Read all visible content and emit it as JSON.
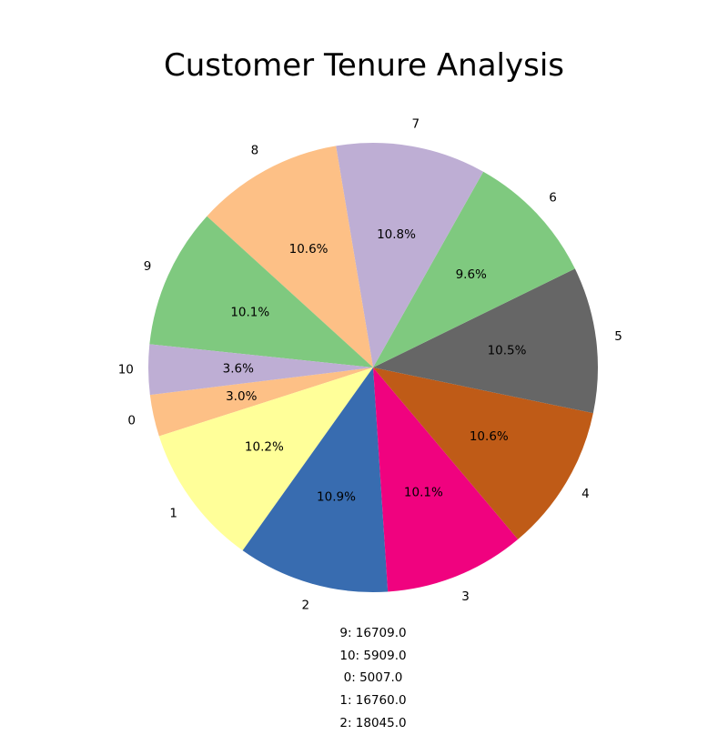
{
  "chart_data": {
    "type": "pie",
    "title": "Customer Tenure Analysis",
    "start_angle_deg": 187,
    "direction": "counterclockwise",
    "slices": [
      {
        "label": "0",
        "percent": 3.0,
        "autopct": "3.0%",
        "color": "#fdc086"
      },
      {
        "label": "1",
        "percent": 10.2,
        "autopct": "10.2%",
        "color": "#ffff99"
      },
      {
        "label": "2",
        "percent": 10.9,
        "autopct": "10.9%",
        "color": "#386cb0"
      },
      {
        "label": "3",
        "percent": 10.1,
        "autopct": "10.1%",
        "color": "#f0027f"
      },
      {
        "label": "4",
        "percent": 10.6,
        "autopct": "10.6%",
        "color": "#bf5b17"
      },
      {
        "label": "5",
        "percent": 10.5,
        "autopct": "10.5%",
        "color": "#666666"
      },
      {
        "label": "6",
        "percent": 9.6,
        "autopct": "9.6%",
        "color": "#7fc97f"
      },
      {
        "label": "7",
        "percent": 10.8,
        "autopct": "10.8%",
        "color": "#beaed4"
      },
      {
        "label": "8",
        "percent": 10.6,
        "autopct": "10.6%",
        "color": "#fdc086"
      },
      {
        "label": "9",
        "percent": 10.1,
        "autopct": "10.1%",
        "color": "#7fc97f"
      },
      {
        "label": "10",
        "percent": 3.6,
        "autopct": "3.6%",
        "color": "#beaed4"
      }
    ],
    "annotations": [
      "9: 16709.0",
      "10: 5909.0",
      "0: 5007.0",
      "1: 16760.0",
      "2: 18045.0"
    ]
  }
}
